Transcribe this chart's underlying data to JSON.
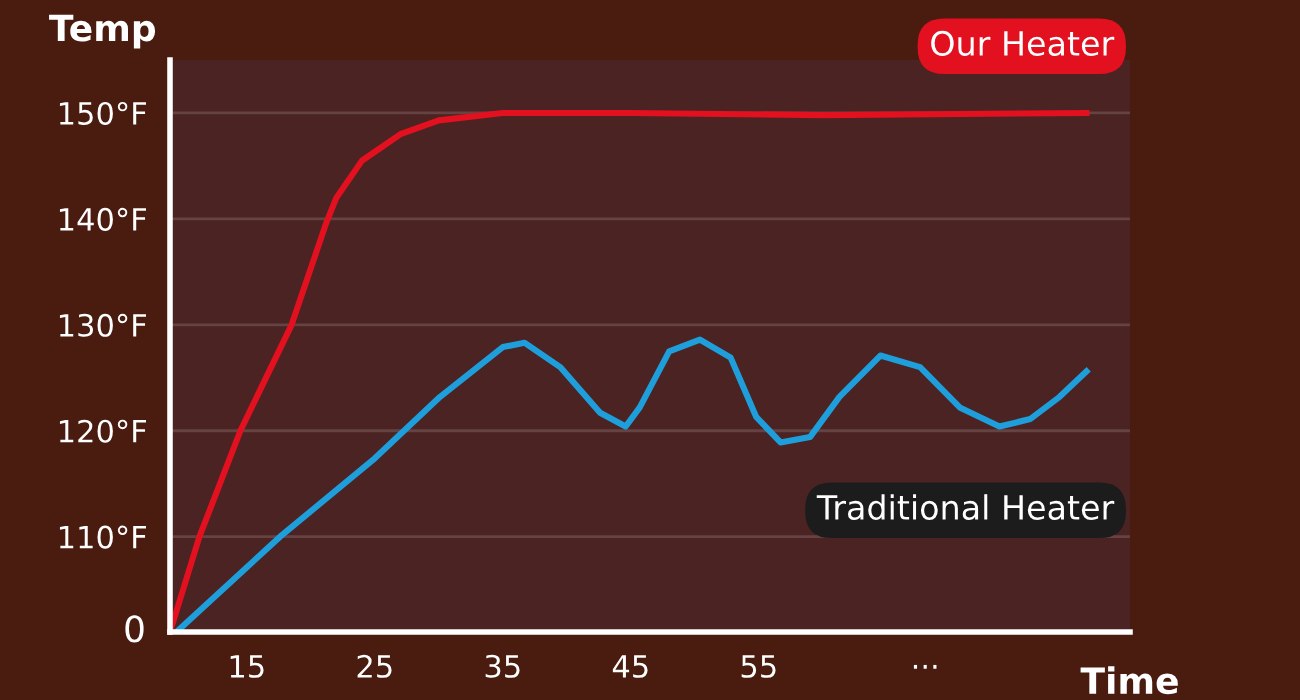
{
  "chart_data": {
    "type": "line",
    "xlabel": "Time",
    "ylabel": "Temp",
    "xlim": [
      9,
      84
    ],
    "ylim": [
      101,
      155
    ],
    "annotations": [
      "0"
    ],
    "xticks": [
      15,
      25,
      35,
      45,
      55,
      {
        "value": 68,
        "label": "···"
      }
    ],
    "yticks": [
      {
        "value": 110,
        "label": "110°F"
      },
      {
        "value": 120,
        "label": "120°F"
      },
      {
        "value": 130,
        "label": "130°F"
      },
      {
        "value": 140,
        "label": "140°F"
      },
      {
        "value": 150,
        "label": "150°F"
      }
    ],
    "grid": "y",
    "legend": false,
    "marker": "none",
    "line_style": "solid",
    "series": [
      {
        "name": "Our Heater",
        "color": "#e3101f",
        "x": [
          9,
          11.3,
          14.5,
          18.5,
          21.2,
          22,
          24,
          27,
          30,
          35,
          45,
          60,
          80.6
        ],
        "values": [
          101,
          110,
          120,
          130,
          139.6,
          142,
          145.5,
          148,
          149.3,
          150,
          150,
          149.8,
          150
        ]
      },
      {
        "name": "Traditional Heater",
        "color": "#1e9fdc",
        "x": [
          9.5,
          17.6,
          25,
          30.1,
          35,
          36.7,
          39.5,
          42.6,
          44.6,
          45.7,
          48,
          50.4,
          52.8,
          54.8,
          56.7,
          59,
          61.3,
          64.5,
          67.6,
          70.7,
          73.8,
          76.2,
          78.5,
          80.6
        ],
        "values": [
          101,
          110,
          117.4,
          123.2,
          127.9,
          128.3,
          126,
          121.7,
          120.4,
          122.2,
          127.5,
          128.6,
          126.9,
          121.3,
          118.9,
          119.4,
          123.2,
          127.1,
          126,
          122.2,
          120.4,
          121.1,
          123.2,
          125.6
        ]
      }
    ]
  }
}
